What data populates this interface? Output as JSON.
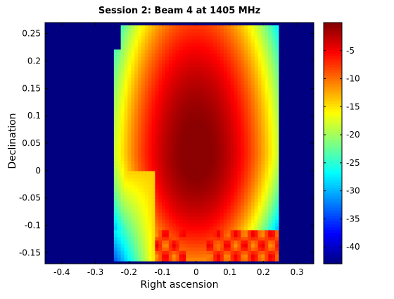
{
  "chart_data": {
    "type": "heatmap",
    "title": "Session 2: Beam 4 at 1405 MHz",
    "xlabel": "Right ascension",
    "ylabel": "Declination",
    "xlim": [
      -0.45,
      0.35
    ],
    "ylim": [
      -0.17,
      0.27
    ],
    "x_ticks": [
      -0.4,
      -0.3,
      -0.2,
      -0.1,
      0,
      0.1,
      0.2,
      0.3
    ],
    "x_tick_labels": [
      "-0.4",
      "-0.3",
      "-0.2",
      "-0.1",
      "0",
      "0.1",
      "0.2",
      "0.3"
    ],
    "y_ticks": [
      -0.15,
      -0.1,
      -0.05,
      0,
      0.05,
      0.1,
      0.15,
      0.2,
      0.25
    ],
    "y_tick_labels": [
      "-0.15",
      "-0.1",
      "-0.05",
      "0",
      "0.05",
      "0.1",
      "0.15",
      "0.2",
      "0.25"
    ],
    "colorbar": {
      "range": [
        -43,
        0
      ],
      "ticks": [
        -5,
        -10,
        -15,
        -20,
        -25,
        -30,
        -35,
        -40
      ],
      "tick_labels": [
        "-5",
        "-10",
        "-15",
        "-20",
        "-25",
        "-30",
        "-35",
        "-40"
      ],
      "colormap": "jet"
    },
    "background_value": -43,
    "mapped_region": {
      "ra": [
        -0.245,
        0.245
      ],
      "dec": [
        -0.165,
        0.265
      ]
    },
    "beam_peak": {
      "ra": 0.0,
      "dec": 0.03,
      "value": 0
    },
    "grid": false
  }
}
